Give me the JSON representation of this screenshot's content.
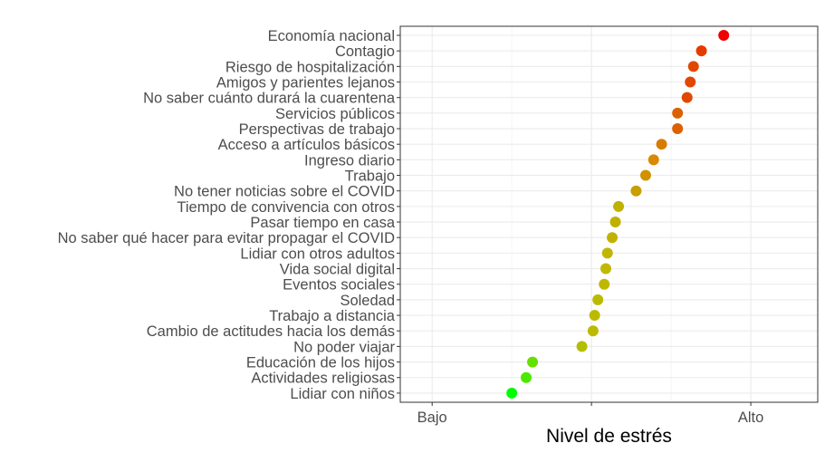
{
  "chart_data": {
    "type": "scatter",
    "title": "",
    "xlabel": "Nivel de estrés",
    "ylabel": "",
    "xlim": [
      0.78,
      1.042
    ],
    "x_ticks": [
      {
        "value": 0.8,
        "label": "Bajo"
      },
      {
        "value": 0.9,
        "label": ""
      },
      {
        "value": 1.0,
        "label": "Alto"
      }
    ],
    "grid": true,
    "legend": "none",
    "color_scale": {
      "low": "#00ff00",
      "mid": "#c0c000",
      "high": "#ff0000"
    },
    "categories": [
      "Economía nacional",
      "Contagio",
      "Riesgo de hospitalización",
      "Amigos y parientes lejanos",
      "No saber cuánto durará la cuarentena",
      "Servicios públicos",
      "Perspectivas de trabajo",
      "Acceso a artículos básicos",
      "Ingreso diario",
      "Trabajo",
      "No tener noticias sobre el COVID",
      "Tiempo de convivencia con otros",
      "Pasar tiempo en casa",
      "No saber qué hacer para evitar propagar el COVID",
      "Lidiar con otros adultos",
      "Vida social digital",
      "Eventos sociales",
      "Soledad",
      "Trabajo a distancia",
      "Cambio de actitudes hacia los demás",
      "No poder viajar",
      "Educación de los hijos",
      "Actividades religiosas",
      "Lidiar con niños"
    ],
    "values": [
      0.983,
      0.969,
      0.964,
      0.962,
      0.96,
      0.954,
      0.954,
      0.944,
      0.939,
      0.934,
      0.928,
      0.917,
      0.915,
      0.913,
      0.91,
      0.909,
      0.908,
      0.904,
      0.902,
      0.901,
      0.894,
      0.863,
      0.859,
      0.85
    ],
    "colors": [
      "#f20000",
      "#e53a00",
      "#e04800",
      "#e04800",
      "#e04800",
      "#dc6000",
      "#dc6000",
      "#d87c00",
      "#d88a00",
      "#d09200",
      "#c89e00",
      "#c0b000",
      "#c0b000",
      "#c0b200",
      "#c0b600",
      "#c0b800",
      "#c0b800",
      "#bcba00",
      "#bcba00",
      "#bcba00",
      "#b4be00",
      "#66e000",
      "#4ce800",
      "#00ff00"
    ]
  }
}
